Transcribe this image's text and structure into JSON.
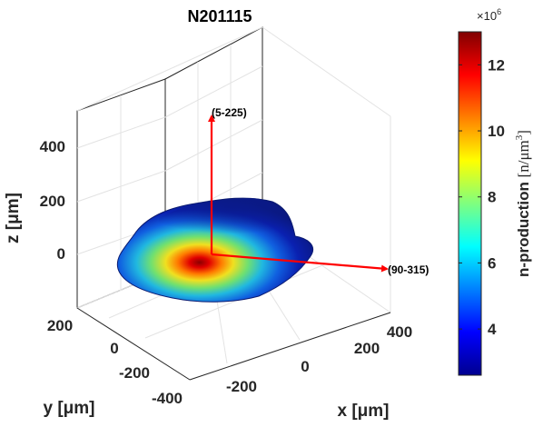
{
  "chart_data": {
    "type": "surface3d",
    "title": "N201115",
    "xlabel": "x [μm]",
    "ylabel": "y [μm]",
    "zlabel": "z [μm]",
    "x_ticks": [
      "-200",
      "0",
      "200",
      "400"
    ],
    "y_ticks": [
      "200",
      "0",
      "-200",
      "-400"
    ],
    "z_ticks": [
      "400",
      "200",
      "0"
    ],
    "xlim": [
      -350,
      450
    ],
    "ylim": [
      -450,
      300
    ],
    "zlim": [
      -150,
      650
    ],
    "grid": true,
    "arrows": [
      {
        "label": "(5-225)",
        "direction": "up"
      },
      {
        "label": "(90-315)",
        "direction": "right"
      }
    ],
    "colorbar": {
      "label_text": "n-production",
      "label_unit": "[n/μm",
      "label_unit_exp": "3",
      "label_unit_close": "]",
      "multiplier_base": "×10",
      "multiplier_exp": "6",
      "ticks": [
        "12",
        "10",
        "8",
        "6",
        "4"
      ],
      "range": [
        2.6,
        13.0
      ],
      "colormap": "jet"
    }
  }
}
